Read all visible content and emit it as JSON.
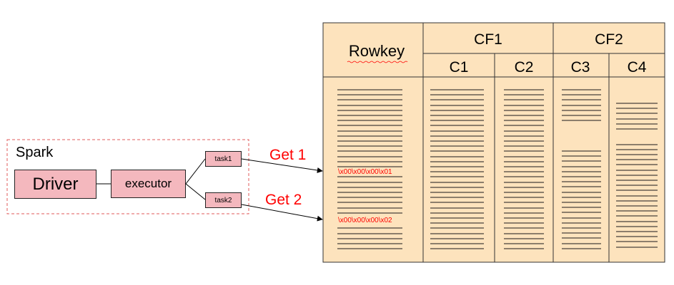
{
  "spark": {
    "title": "Spark",
    "driver": "Driver",
    "executor": "executor",
    "task1": "task1",
    "task2": "task2"
  },
  "requests": {
    "get1": "Get 1",
    "get2": "Get 2"
  },
  "table": {
    "rowkey_header": "Rowkey",
    "column_families": [
      {
        "name": "CF1",
        "columns": [
          "C1",
          "C2"
        ]
      },
      {
        "name": "CF2",
        "columns": [
          "C3",
          "C4"
        ]
      }
    ],
    "highlighted_rowkeys": [
      "\\x00\\x00\\x00\\x01",
      "\\x00\\x00\\x00\\x02"
    ]
  },
  "colors": {
    "table_fill": "#fde3bd",
    "box_fill": "#f4b8be",
    "request_red": "#ff0000",
    "spark_border_red": "#e05a5a"
  }
}
